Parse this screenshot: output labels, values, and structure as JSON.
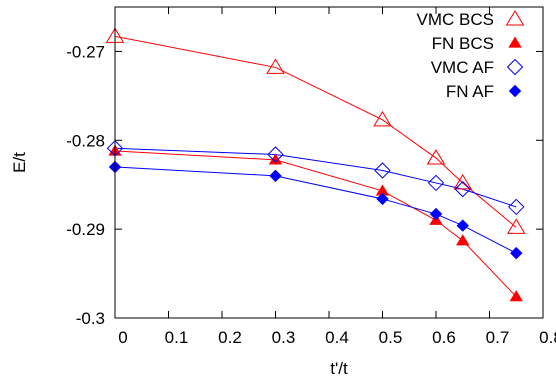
{
  "chart_data": {
    "type": "line",
    "xlabel": "t'/t",
    "ylabel": "E/t",
    "xlim": [
      0,
      0.8
    ],
    "ylim": [
      -0.3,
      -0.265
    ],
    "xticks": [
      0,
      0.1,
      0.2,
      0.3,
      0.4,
      0.5,
      0.6,
      0.7,
      0.8
    ],
    "xtick_labels": [
      "0",
      "0.1",
      "0.2",
      "0.3",
      "0.4",
      "0.5",
      "0.6",
      "0.7",
      "0.8"
    ],
    "yticks": [
      -0.3,
      -0.29,
      -0.28,
      -0.27
    ],
    "ytick_labels": [
      "-0.3",
      "-0.29",
      "-0.28",
      "-0.27"
    ],
    "grid": false,
    "legend_position": "top-right",
    "series": [
      {
        "name": "VMC BCS",
        "color": "#ff0000",
        "marker": "triangle-open",
        "x": [
          0,
          0.3,
          0.5,
          0.6,
          0.65,
          0.75
        ],
        "y": [
          -0.2683,
          -0.2718,
          -0.2777,
          -0.282,
          -0.2848,
          -0.2898
        ]
      },
      {
        "name": "FN BCS",
        "color": "#ff0000",
        "marker": "triangle-filled",
        "x": [
          0,
          0.3,
          0.5,
          0.6,
          0.65,
          0.75
        ],
        "y": [
          -0.2812,
          -0.2822,
          -0.2857,
          -0.289,
          -0.2913,
          -0.2976
        ]
      },
      {
        "name": "VMC AF",
        "color": "#0000ff",
        "marker": "diamond-open",
        "x": [
          0,
          0.3,
          0.5,
          0.6,
          0.65,
          0.75
        ],
        "y": [
          -0.2809,
          -0.2816,
          -0.2834,
          -0.2848,
          -0.2855,
          -0.2875
        ]
      },
      {
        "name": "FN AF",
        "color": "#0000ff",
        "marker": "diamond-filled",
        "x": [
          0,
          0.3,
          0.5,
          0.6,
          0.65,
          0.75
        ],
        "y": [
          -0.283,
          -0.284,
          -0.2866,
          -0.2883,
          -0.2896,
          -0.2927
        ]
      }
    ]
  }
}
